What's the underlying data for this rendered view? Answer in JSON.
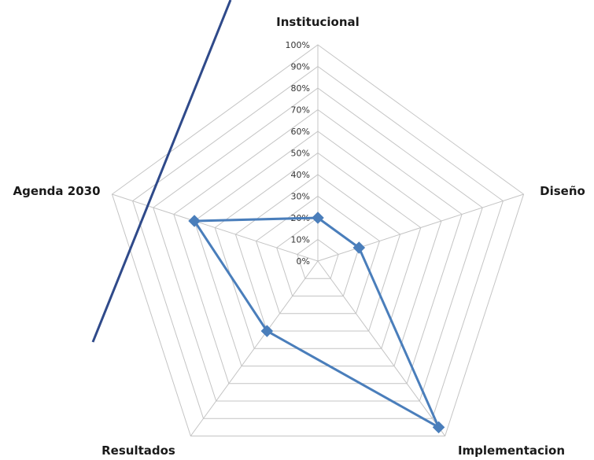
{
  "chart_data": {
    "type": "radar",
    "axes": [
      "Institucional",
      "Diseño",
      "Implementacion",
      "Resultados",
      "Agenda 2030"
    ],
    "tick_labels": [
      "0%",
      "10%",
      "20%",
      "30%",
      "40%",
      "50%",
      "60%",
      "70%",
      "80%",
      "90%",
      "100%"
    ],
    "range": [
      0,
      100
    ],
    "gridlines": true,
    "series": [
      {
        "values": [
          20,
          20,
          95,
          40,
          60
        ],
        "color": "#4a7ebb"
      }
    ],
    "overlay_line_color": "#2f4a8a"
  }
}
